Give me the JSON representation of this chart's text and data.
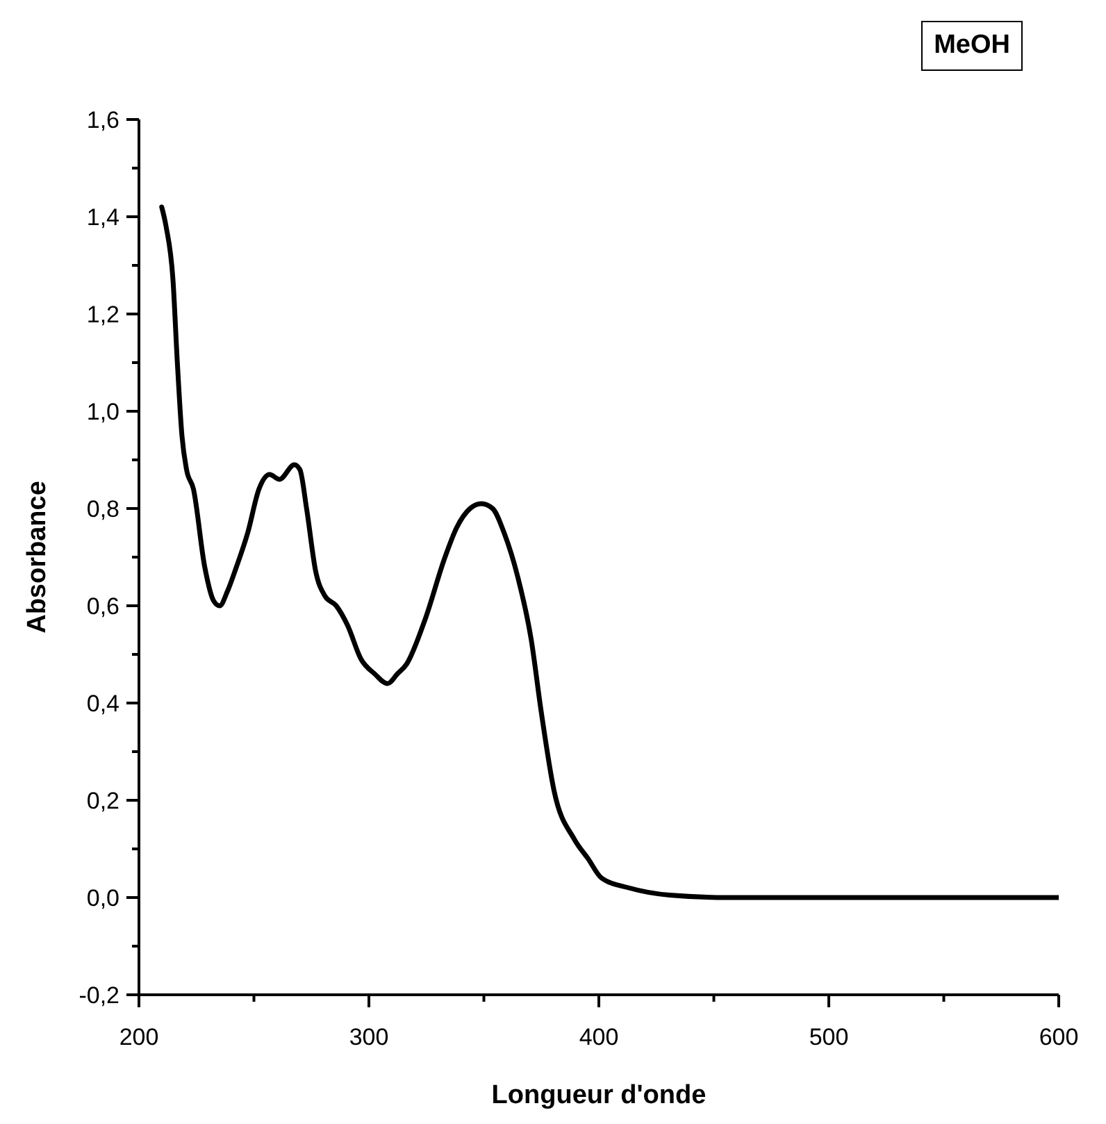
{
  "chart_data": {
    "type": "line",
    "xlabel": "Longueur d'onde",
    "ylabel": "Absorbance",
    "annotations": [
      "MeOH"
    ],
    "x": [
      209.9,
      211.8,
      214.8,
      216.7,
      218.7,
      220.7,
      223.7,
      228.6,
      232.5,
      235.1,
      238.5,
      242.4,
      247.3,
      252.2,
      256.8,
      261.1,
      267.6,
      270,
      272.9,
      276.9,
      280.9,
      285.8,
      290.7,
      296.6,
      302.5,
      308.1,
      312.4,
      316.4,
      324.3,
      333.1,
      338.1,
      344,
      348.9,
      353.8,
      358.8,
      364.7,
      370.6,
      375,
      380.5,
      389.3,
      395.3,
      401.2,
      413,
      430.8,
      456.4,
      500,
      550,
      599.8
    ],
    "series": [
      {
        "color": "#000000",
        "values": [
          1.42,
          1.38,
          1.27,
          1.1,
          0.95,
          0.88,
          0.84,
          0.68,
          0.61,
          0.6,
          0.63,
          0.68,
          0.75,
          0.84,
          0.87,
          0.86,
          0.89,
          0.88,
          0.8,
          0.67,
          0.62,
          0.6,
          0.56,
          0.49,
          0.46,
          0.44,
          0.46,
          0.48,
          0.57,
          0.7,
          0.76,
          0.8,
          0.81,
          0.8,
          0.75,
          0.66,
          0.53,
          0.38,
          0.22,
          0.12,
          0.08,
          0.04,
          0.02,
          0.005,
          0,
          0,
          0,
          0
        ]
      }
    ],
    "xlim": [
      200,
      600
    ],
    "ylim": [
      -0.2,
      1.6
    ],
    "xticks": [
      200,
      {
        "value": 250,
        "label": null
      },
      300,
      {
        "value": 350,
        "label": null
      },
      400,
      {
        "value": 450,
        "label": null
      },
      500,
      {
        "value": 550,
        "label": null
      },
      600
    ],
    "yticks": [
      {
        "value": -0.2,
        "label": "-0,2"
      },
      {
        "value": -0.1,
        "label": null
      },
      {
        "value": 0,
        "label": "0,0"
      },
      {
        "value": 0.1,
        "label": null
      },
      {
        "value": 0.2,
        "label": "0,2"
      },
      {
        "value": 0.3,
        "label": null
      },
      {
        "value": 0.4,
        "label": "0,4"
      },
      {
        "value": 0.5,
        "label": null
      },
      {
        "value": 0.6,
        "label": "0,6"
      },
      {
        "value": 0.7,
        "label": null
      },
      {
        "value": 0.8,
        "label": "0,8"
      },
      {
        "value": 0.9,
        "label": null
      },
      {
        "value": 1.0,
        "label": "1,0"
      },
      {
        "value": 1.1,
        "label": null
      },
      {
        "value": 1.2,
        "label": "1,2"
      },
      {
        "value": 1.3,
        "label": null
      },
      {
        "value": 1.4,
        "label": "1,4"
      },
      {
        "value": 1.5,
        "label": null
      },
      {
        "value": 1.6,
        "label": "1,6"
      }
    ],
    "grid": false,
    "legend": false,
    "marker": "none",
    "line_style": "solid"
  }
}
